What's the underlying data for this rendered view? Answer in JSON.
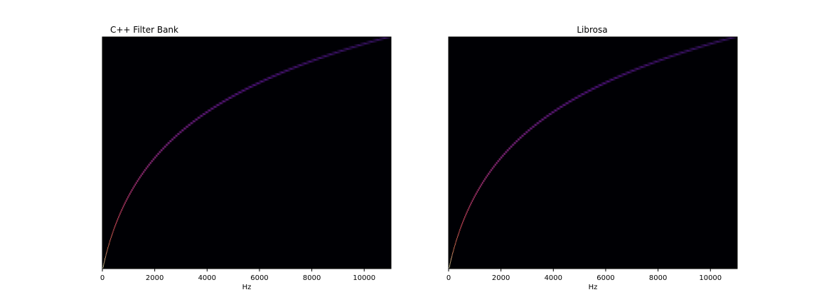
{
  "chart_data": [
    {
      "type": "heatmap",
      "title": "C++ Filter Bank",
      "xlabel": "Hz",
      "ylabel": "",
      "xlim": [
        0,
        11025
      ],
      "x_ticks": [
        0,
        2000,
        4000,
        6000,
        8000,
        10000
      ],
      "x_tick_labels": [
        "0",
        "2000",
        "4000",
        "6000",
        "8000",
        "10000"
      ],
      "n_filters": 128,
      "colormap": "magma",
      "background_color": "#000004",
      "grid": false,
      "legend": "none"
    },
    {
      "type": "heatmap",
      "title": "Librosa",
      "xlabel": "Hz",
      "ylabel": "",
      "xlim": [
        0,
        11025
      ],
      "x_ticks": [
        0,
        2000,
        4000,
        6000,
        8000,
        10000
      ],
      "x_tick_labels": [
        "0",
        "2000",
        "4000",
        "6000",
        "8000",
        "10000"
      ],
      "n_filters": 128,
      "colormap": "magma",
      "background_color": "#000004",
      "grid": false,
      "legend": "none"
    }
  ]
}
